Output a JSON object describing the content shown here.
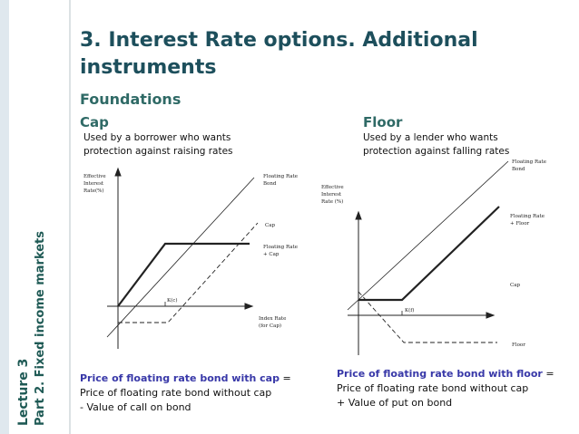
{
  "side": {
    "lecture": "Lecture 3",
    "part": "Part 2. Fixed income markets"
  },
  "title": [
    "3. Interest Rate options. Additional",
    "instruments"
  ],
  "heading": "Foundations",
  "cap": {
    "heading": "Cap",
    "description": [
      "Used by a borrower who wants",
      "protection  against raising rates"
    ],
    "diagram": {
      "y_axis": [
        "Effective",
        "Interest",
        "Rate(%)"
      ],
      "bond": [
        "Floating Rate",
        "Bond"
      ],
      "cap": "Cap",
      "combo": [
        "Floating Rate",
        "+ Cap"
      ],
      "strike": "K(c)",
      "x_axis": [
        "Index Rate",
        "(for Cap)"
      ]
    },
    "formula": {
      "lead": "Price of floating rate bond with cap",
      "sign": "=",
      "lines": [
        "Price of floating rate bond without cap",
        "- Value of call on bond"
      ]
    }
  },
  "floor": {
    "heading": "Floor",
    "description": [
      "Used by a lender who wants",
      "protection  against falling rates"
    ],
    "diagram": {
      "y_axis": [
        "Effective",
        "Interest",
        "Rate (%)"
      ],
      "bond": [
        "Floating Rate",
        "Bond"
      ],
      "combo": [
        "Floating Rate",
        "+ Floor"
      ],
      "cap": "Cap",
      "strike": "K(f)",
      "floor": "Floor"
    },
    "formula": {
      "lead": "Price of floating rate bond with floor",
      "sign": "=",
      "lines": [
        "Price of floating rate bond without cap",
        "+ Value of put on bond"
      ]
    }
  }
}
